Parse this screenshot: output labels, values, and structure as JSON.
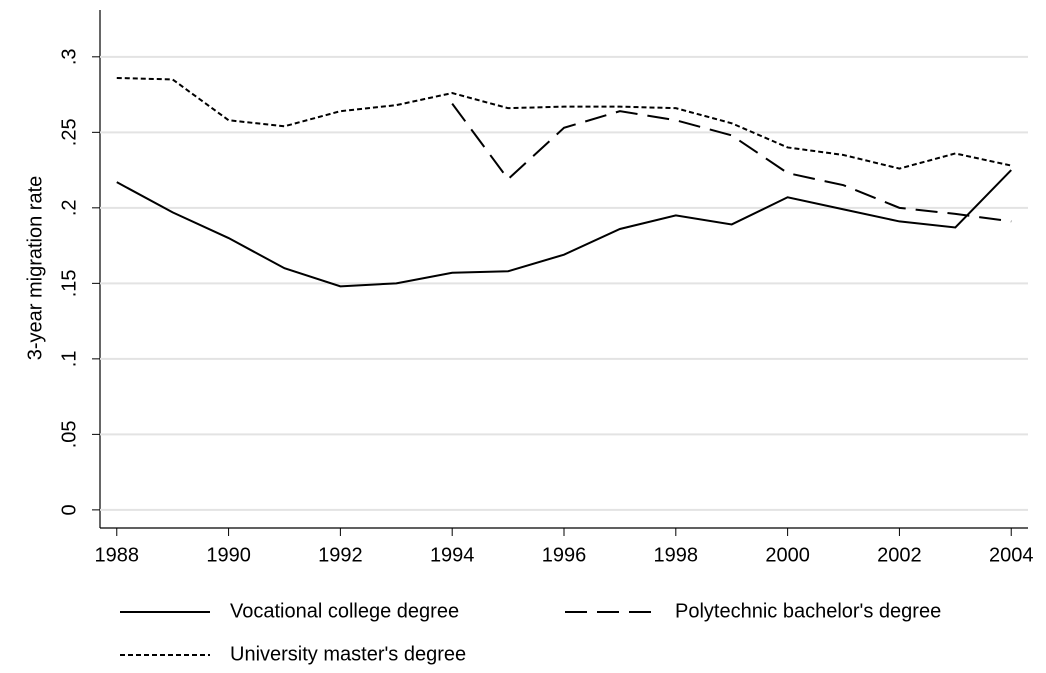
{
  "chart_data": {
    "type": "line",
    "y_label": "3-year migration rate",
    "x": [
      1988,
      1989,
      1990,
      1991,
      1992,
      1993,
      1994,
      1995,
      1996,
      1997,
      1998,
      1999,
      2000,
      2001,
      2002,
      2003,
      2004
    ],
    "series": [
      {
        "name": "Vocational college degree",
        "color": "#000000",
        "dash": "solid",
        "values": [
          0.217,
          0.197,
          0.18,
          0.16,
          0.148,
          0.15,
          0.157,
          0.158,
          0.169,
          0.186,
          0.195,
          0.189,
          0.207,
          0.199,
          0.191,
          0.187,
          0.225
        ]
      },
      {
        "name": "Polytechnic bachelor's degree",
        "color": "#000000",
        "dash": "dashed",
        "values": [
          null,
          null,
          null,
          null,
          null,
          null,
          0.269,
          0.219,
          0.253,
          0.264,
          0.258,
          0.248,
          0.223,
          0.215,
          0.2,
          0.196,
          0.191
        ]
      },
      {
        "name": "University master's degree",
        "color": "#000000",
        "dash": "dotted",
        "values": [
          0.286,
          0.285,
          0.258,
          0.254,
          0.264,
          0.268,
          0.276,
          0.266,
          0.267,
          0.267,
          0.266,
          0.256,
          0.24,
          0.235,
          0.226,
          0.236,
          0.228
        ]
      }
    ],
    "xlim": [
      1987.7,
      2004.3
    ],
    "xticks": [
      1988,
      1990,
      1992,
      1994,
      1996,
      1998,
      2000,
      2002,
      2004
    ],
    "ylim": [
      -0.012,
      0.331
    ],
    "yticks": [
      0,
      {
        "value": 0.05,
        "label": ".05"
      },
      {
        "value": 0.1,
        "label": ".1"
      },
      {
        "value": 0.15,
        "label": ".15"
      },
      {
        "value": 0.2,
        "label": ".2"
      },
      {
        "value": 0.25,
        "label": ".25"
      },
      {
        "value": 0.3,
        "label": ".3"
      }
    ],
    "grid": true,
    "legend": "bottom"
  }
}
